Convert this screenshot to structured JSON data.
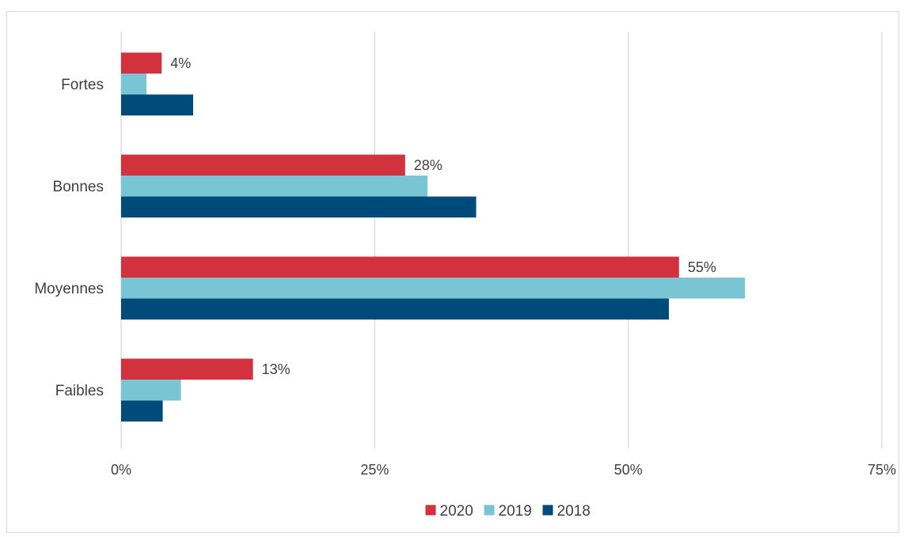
{
  "chart_data": {
    "type": "bar",
    "orientation": "horizontal",
    "title": "",
    "xlabel": "",
    "ylabel": "",
    "categories": [
      "Fortes",
      "Bonnes",
      "Moyennes",
      "Faibles"
    ],
    "series": [
      {
        "name": "2020",
        "color": "#d1323d",
        "values": [
          4,
          28,
          55,
          13
        ],
        "labels": [
          "4%",
          "28%",
          "55%",
          "13%"
        ]
      },
      {
        "name": "2019",
        "color": "#7ac5d4",
        "values": [
          2.5,
          30.2,
          61.5,
          5.9
        ]
      },
      {
        "name": "2018",
        "color": "#004b79",
        "values": [
          7.1,
          35.0,
          54.0,
          4.1
        ]
      }
    ],
    "xlim": [
      0,
      75
    ],
    "xticks": [
      0,
      25,
      50,
      75
    ],
    "xtick_labels": [
      "0%",
      "25%",
      "50%",
      "75%"
    ],
    "grid": "vertical",
    "legend_position": "bottom"
  }
}
